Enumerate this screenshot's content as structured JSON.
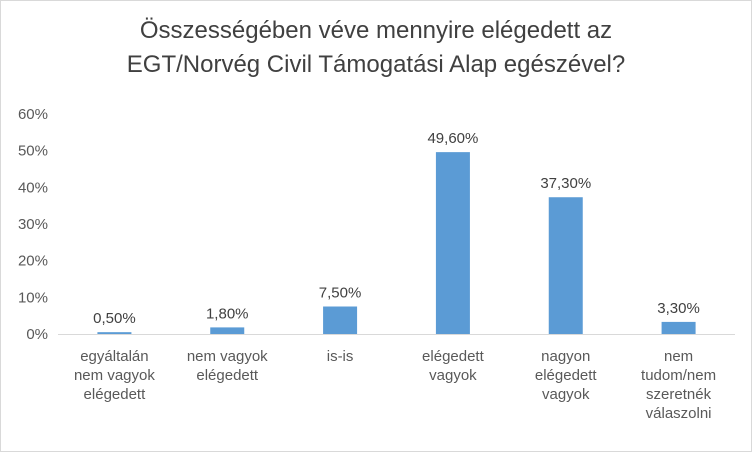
{
  "chart_data": {
    "type": "bar",
    "title": [
      "Összességében véve mennyire elégedett az",
      "EGT/Norvég Civil Támogatási Alap egészével?"
    ],
    "categories": [
      [
        "egyáltalán",
        "nem vagyok",
        "elégedett"
      ],
      [
        "nem vagyok",
        "elégedett"
      ],
      [
        "is-is"
      ],
      [
        "elégedett",
        "vagyok"
      ],
      [
        "nagyon",
        "elégedett",
        "vagyok"
      ],
      [
        "nem",
        "tudom/nem",
        "szeretnék",
        "válaszolni"
      ]
    ],
    "values": [
      0.5,
      1.8,
      7.5,
      49.6,
      37.3,
      3.3
    ],
    "data_labels": [
      "0,50%",
      "1,80%",
      "7,50%",
      "49,60%",
      "37,30%",
      "3,30%"
    ],
    "yticks": [
      "0%",
      "10%",
      "20%",
      "30%",
      "40%",
      "50%",
      "60%"
    ],
    "ylim": [
      0,
      60
    ],
    "xlabel": "",
    "ylabel": "",
    "grid": false,
    "legend": "none",
    "bar_color": "#5b9bd5",
    "axis_color": "#d9d9d9"
  }
}
